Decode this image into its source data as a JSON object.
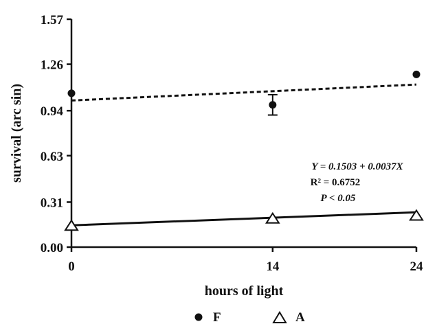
{
  "chart_data": {
    "type": "scatter",
    "xlabel": "hours of light",
    "ylabel": "survival (arc sin)",
    "x_ticks": [
      "0",
      "14",
      "24"
    ],
    "y_ticks": [
      "0.00",
      "0.31",
      "0.63",
      "0.94",
      "1.26",
      "1.57"
    ],
    "xlim": [
      0,
      24
    ],
    "ylim": [
      0,
      1.57
    ],
    "grid": false,
    "legend_position": "bottom",
    "series": [
      {
        "name": "F",
        "marker": "filled-circle",
        "line": "dashed",
        "x": [
          0,
          14,
          24
        ],
        "y": [
          1.06,
          0.98,
          1.19
        ],
        "error": [
          null,
          0.07,
          null
        ],
        "fit": {
          "x": [
            0,
            24
          ],
          "y": [
            1.01,
            1.12
          ]
        }
      },
      {
        "name": "A",
        "marker": "open-triangle",
        "line": "solid",
        "x": [
          0,
          14,
          24
        ],
        "y": [
          0.15,
          0.2,
          0.22
        ],
        "fit": {
          "x": [
            0,
            24
          ],
          "y": [
            0.15,
            0.24
          ]
        }
      }
    ],
    "annotation": {
      "equation": "Y = 0.1503 + 0.0037X",
      "r_squared": "R² = 0.6752",
      "p_value": "P < 0.05"
    }
  }
}
